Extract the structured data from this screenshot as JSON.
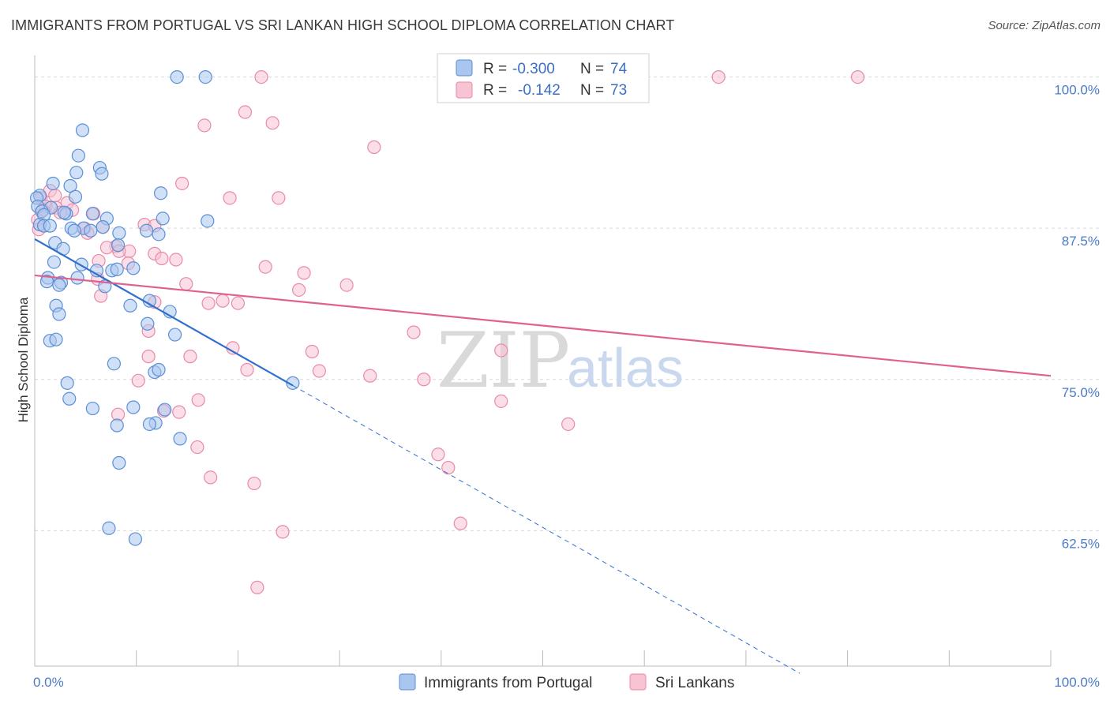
{
  "header": {
    "title": "IMMIGRANTS FROM PORTUGAL VS SRI LANKAN HIGH SCHOOL DIPLOMA CORRELATION CHART",
    "source": "Source: ZipAtlas.com"
  },
  "watermark": {
    "zip": "ZIP",
    "atlas": "atlas"
  },
  "legend_box": {
    "r_label": "R =",
    "n_label": "N =",
    "series": [
      {
        "r": "-0.300",
        "n": "74"
      },
      {
        "r": "-0.142",
        "n": "73"
      }
    ]
  },
  "colors": {
    "portugal_fill": "#a9c6ee",
    "portugal_stroke": "#5b8fd6",
    "portugal_line": "#2f6fcf",
    "srilanka_fill": "#f8c3d3",
    "srilanka_stroke": "#e98aa8",
    "srilanka_line": "#e0608e"
  },
  "chart_data": {
    "type": "scatter",
    "title": "IMMIGRANTS FROM PORTUGAL VS SRI LANKAN HIGH SCHOOL DIPLOMA CORRELATION CHART",
    "xlabel": "",
    "ylabel": "High School Diploma",
    "xlim": [
      0,
      100
    ],
    "ylim": [
      51.3,
      101.8
    ],
    "x_tick_labels": [
      "0.0%",
      "100.0%"
    ],
    "y_ticks": [
      62.5,
      75.0,
      87.5,
      100.0
    ],
    "y_tick_labels": [
      "62.5%",
      "75.0%",
      "87.5%",
      "100.0%"
    ],
    "grid": true,
    "legend": [
      "Immigrants from Portugal",
      "Sri Lankans"
    ],
    "series": [
      {
        "name": "Immigrants from Portugal",
        "r": -0.3,
        "n": 74,
        "trend": {
          "x0": 0,
          "y0": 86.6,
          "x1": 25.4,
          "y1": 74.5,
          "dash_to_x": 75.3,
          "dash_to_y": 50.7
        },
        "points": [
          [
            14.0,
            100.0
          ],
          [
            16.8,
            100.0
          ],
          [
            4.7,
            95.6
          ],
          [
            4.3,
            93.5
          ],
          [
            6.4,
            92.5
          ],
          [
            6.6,
            92.0
          ],
          [
            4.1,
            92.1
          ],
          [
            1.8,
            91.2
          ],
          [
            3.5,
            91.0
          ],
          [
            0.5,
            90.2
          ],
          [
            0.2,
            90.0
          ],
          [
            12.4,
            90.4
          ],
          [
            4.0,
            90.1
          ],
          [
            0.3,
            89.3
          ],
          [
            1.6,
            89.2
          ],
          [
            0.7,
            88.9
          ],
          [
            3.1,
            88.7
          ],
          [
            5.7,
            88.7
          ],
          [
            0.9,
            88.6
          ],
          [
            12.6,
            88.3
          ],
          [
            7.1,
            88.3
          ],
          [
            17.0,
            88.1
          ],
          [
            0.5,
            87.8
          ],
          [
            0.9,
            87.7
          ],
          [
            3.6,
            87.5
          ],
          [
            4.8,
            87.5
          ],
          [
            6.7,
            87.6
          ],
          [
            3.9,
            87.3
          ],
          [
            11.0,
            87.3
          ],
          [
            8.3,
            87.1
          ],
          [
            12.2,
            87.0
          ],
          [
            2.0,
            86.3
          ],
          [
            8.2,
            86.1
          ],
          [
            2.8,
            85.8
          ],
          [
            1.9,
            84.7
          ],
          [
            4.6,
            84.5
          ],
          [
            7.6,
            84.0
          ],
          [
            8.1,
            84.1
          ],
          [
            1.3,
            83.4
          ],
          [
            4.2,
            83.4
          ],
          [
            1.2,
            83.1
          ],
          [
            2.6,
            83.0
          ],
          [
            2.4,
            82.8
          ],
          [
            6.9,
            82.7
          ],
          [
            11.3,
            81.5
          ],
          [
            9.4,
            81.1
          ],
          [
            2.1,
            81.1
          ],
          [
            13.3,
            80.6
          ],
          [
            2.4,
            80.4
          ],
          [
            11.1,
            79.6
          ],
          [
            13.8,
            78.7
          ],
          [
            1.5,
            78.2
          ],
          [
            2.1,
            78.3
          ],
          [
            7.8,
            76.3
          ],
          [
            11.8,
            75.6
          ],
          [
            12.2,
            75.8
          ],
          [
            3.2,
            74.7
          ],
          [
            25.4,
            74.7
          ],
          [
            3.4,
            73.4
          ],
          [
            9.7,
            72.7
          ],
          [
            5.7,
            72.6
          ],
          [
            12.8,
            72.5
          ],
          [
            11.9,
            71.4
          ],
          [
            8.1,
            71.2
          ],
          [
            11.3,
            71.3
          ],
          [
            14.3,
            70.1
          ],
          [
            8.3,
            68.1
          ],
          [
            7.3,
            62.7
          ],
          [
            9.9,
            61.8
          ],
          [
            1.5,
            87.7
          ],
          [
            2.9,
            88.8
          ],
          [
            5.5,
            87.3
          ],
          [
            6.1,
            84.0
          ],
          [
            9.7,
            84.2
          ]
        ]
      },
      {
        "name": "Sri Lankans",
        "r": -0.142,
        "n": 73,
        "trend": {
          "x0": 0,
          "y0": 83.6,
          "x1": 100,
          "y1": 75.3
        },
        "points": [
          [
            22.3,
            100.0
          ],
          [
            67.3,
            100.0
          ],
          [
            81.0,
            100.0
          ],
          [
            20.7,
            97.1
          ],
          [
            23.4,
            96.2
          ],
          [
            16.7,
            96.0
          ],
          [
            33.4,
            94.2
          ],
          [
            14.5,
            91.2
          ],
          [
            1.5,
            90.6
          ],
          [
            2.0,
            90.2
          ],
          [
            0.6,
            90.0
          ],
          [
            19.2,
            90.0
          ],
          [
            24.0,
            90.0
          ],
          [
            3.2,
            89.6
          ],
          [
            1.1,
            89.3
          ],
          [
            2.1,
            89.2
          ],
          [
            0.8,
            89.0
          ],
          [
            3.7,
            89.0
          ],
          [
            2.5,
            88.8
          ],
          [
            5.8,
            88.7
          ],
          [
            0.3,
            88.2
          ],
          [
            10.8,
            87.8
          ],
          [
            11.8,
            87.7
          ],
          [
            4.9,
            87.5
          ],
          [
            6.7,
            87.6
          ],
          [
            5.2,
            87.1
          ],
          [
            8.0,
            86.0
          ],
          [
            7.1,
            85.9
          ],
          [
            9.3,
            85.6
          ],
          [
            8.3,
            85.6
          ],
          [
            11.8,
            85.4
          ],
          [
            12.5,
            85.0
          ],
          [
            13.9,
            84.9
          ],
          [
            9.2,
            84.6
          ],
          [
            6.3,
            84.8
          ],
          [
            22.7,
            84.3
          ],
          [
            26.5,
            83.8
          ],
          [
            6.2,
            83.3
          ],
          [
            14.9,
            82.9
          ],
          [
            30.7,
            82.8
          ],
          [
            26.0,
            82.4
          ],
          [
            6.5,
            81.9
          ],
          [
            11.8,
            81.4
          ],
          [
            18.5,
            81.5
          ],
          [
            17.1,
            81.3
          ],
          [
            20.0,
            81.3
          ],
          [
            37.3,
            78.9
          ],
          [
            11.2,
            79.0
          ],
          [
            19.5,
            77.6
          ],
          [
            27.3,
            77.3
          ],
          [
            45.9,
            77.4
          ],
          [
            11.2,
            76.9
          ],
          [
            15.3,
            76.9
          ],
          [
            20.9,
            75.8
          ],
          [
            28.0,
            75.7
          ],
          [
            33.0,
            75.3
          ],
          [
            38.3,
            75.0
          ],
          [
            10.2,
            74.9
          ],
          [
            16.1,
            73.3
          ],
          [
            45.9,
            73.2
          ],
          [
            14.2,
            72.3
          ],
          [
            8.2,
            72.1
          ],
          [
            12.7,
            72.4
          ],
          [
            52.5,
            71.3
          ],
          [
            16.0,
            69.4
          ],
          [
            39.7,
            68.8
          ],
          [
            40.7,
            67.7
          ],
          [
            17.3,
            66.9
          ],
          [
            21.6,
            66.4
          ],
          [
            41.9,
            63.1
          ],
          [
            24.4,
            62.4
          ],
          [
            21.9,
            57.8
          ],
          [
            0.4,
            87.4
          ]
        ]
      }
    ]
  },
  "bottom_legend": {
    "items": [
      {
        "label": "Immigrants from Portugal"
      },
      {
        "label": "Sri Lankans"
      }
    ]
  }
}
